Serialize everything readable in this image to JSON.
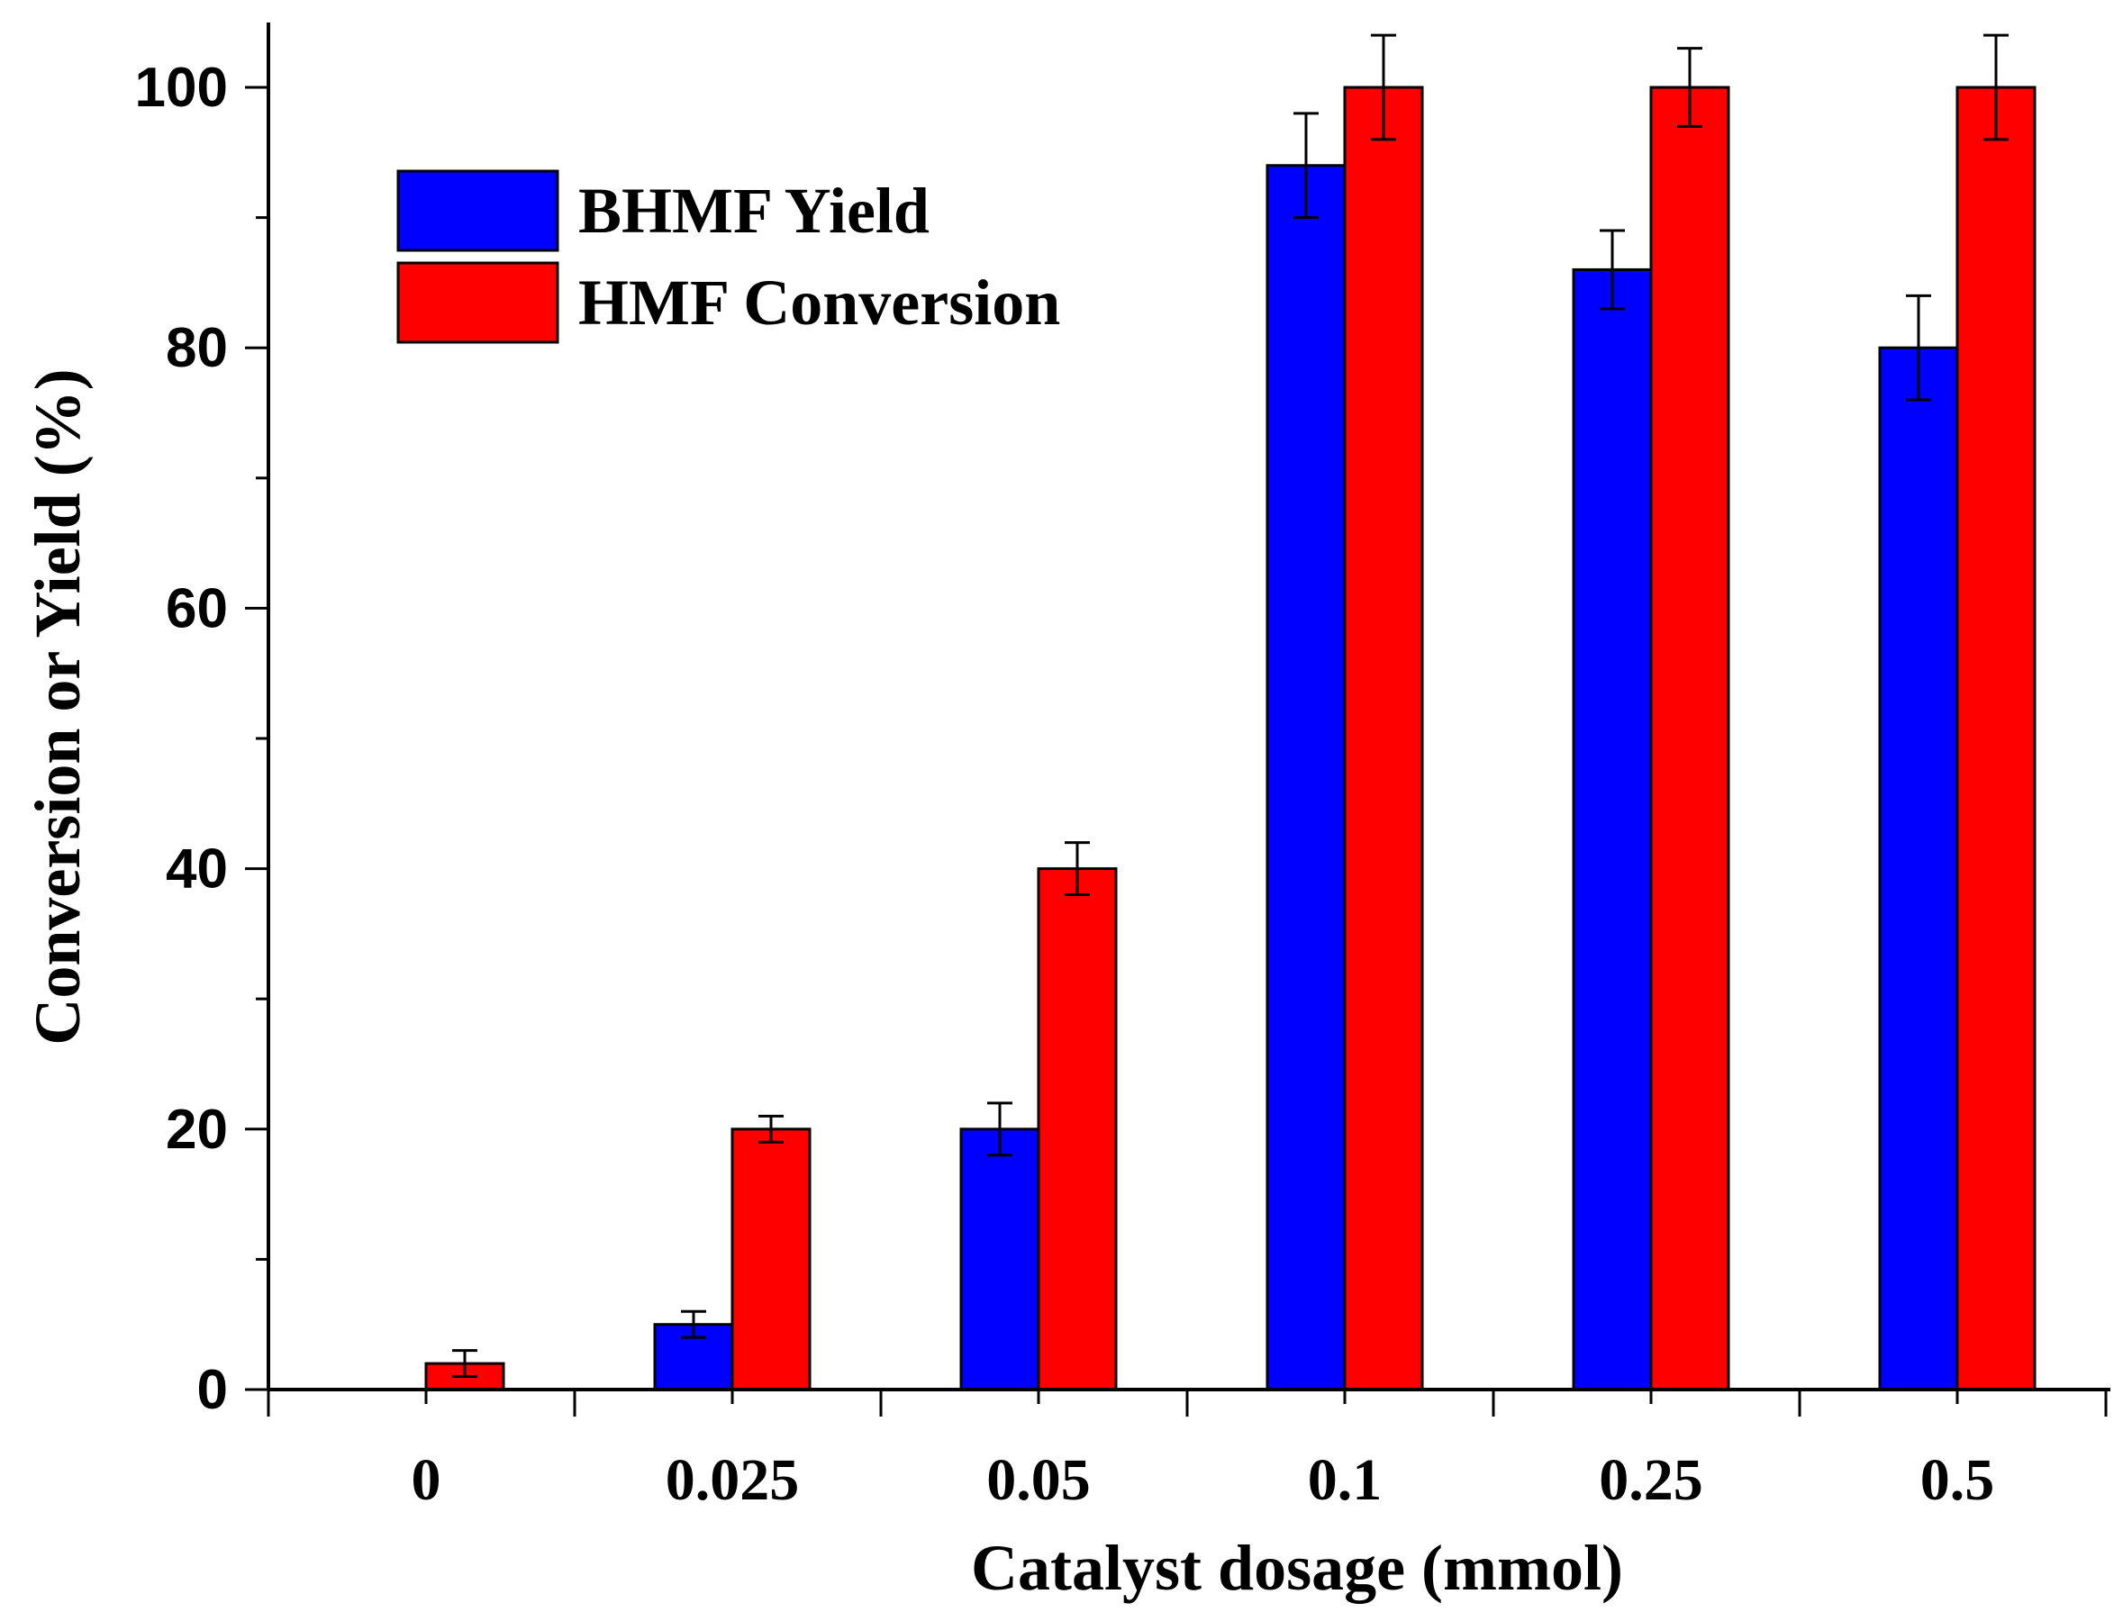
{
  "chart_data": {
    "type": "bar",
    "title": "",
    "xlabel": "Catalyst dosage (mmol)",
    "ylabel": "Conversion or Yield (%)",
    "categories": [
      "0",
      "0.025",
      "0.05",
      "0.1",
      "0.25",
      "0.5"
    ],
    "ylim": [
      0,
      105
    ],
    "yticks": [
      0,
      20,
      40,
      60,
      80,
      100
    ],
    "yminor": [
      10,
      30,
      50,
      70,
      90
    ],
    "grid": false,
    "legend_position": "top-left",
    "series": [
      {
        "name": "BHMF Yield",
        "color": "#0000FF",
        "values": [
          0,
          5,
          20,
          94,
          86,
          80
        ],
        "errors": [
          0,
          1,
          2,
          4,
          3,
          4
        ]
      },
      {
        "name": "HMF Conversion",
        "color": "#FF0000",
        "values": [
          2,
          20,
          40,
          100,
          100,
          100
        ],
        "errors": [
          1,
          1,
          2,
          4,
          3,
          4
        ]
      }
    ]
  }
}
